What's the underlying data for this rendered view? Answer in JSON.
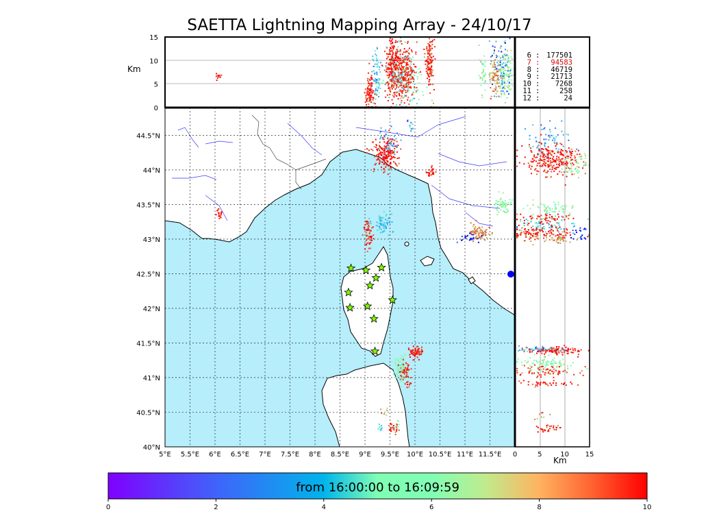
{
  "chart_data": {
    "type": "scatter",
    "title": "SAETTA Lightning Mapping Array - 24/10/17",
    "map_panel": {
      "x_ticks": [
        "5°E",
        "5.5°E",
        "6°E",
        "6.5°E",
        "7°E",
        "7.5°E",
        "8°E",
        "8.5°E",
        "9°E",
        "9.5°E",
        "10°E",
        "10.5°E",
        "11°E",
        "11.5°E"
      ],
      "y_ticks": [
        "40°N",
        "40.5°N",
        "41°N",
        "41.5°N",
        "42°N",
        "42.5°N",
        "43°N",
        "43.5°N",
        "44°N",
        "44.5°N"
      ],
      "lon_range": [
        5,
        12
      ],
      "lat_range": [
        40,
        44.9
      ],
      "grid": true,
      "stations": [
        [
          8.72,
          42.58
        ],
        [
          9.02,
          42.55
        ],
        [
          9.33,
          42.59
        ],
        [
          9.22,
          42.44
        ],
        [
          9.1,
          42.33
        ],
        [
          8.67,
          42.23
        ],
        [
          8.7,
          42.01
        ],
        [
          9.05,
          42.03
        ],
        [
          9.18,
          41.85
        ],
        [
          9.55,
          42.12
        ],
        [
          9.2,
          41.38
        ]
      ]
    },
    "altitude_panel_top": {
      "ylabel": "Km",
      "y_ticks": [
        "0",
        "5",
        "10",
        "15"
      ],
      "ylim": [
        0,
        15
      ]
    },
    "altitude_panel_right": {
      "xlabel": "Km",
      "x_ticks": [
        "0",
        "5",
        "10",
        "15"
      ],
      "xlim": [
        0,
        15
      ]
    },
    "station_counts": [
      {
        "stations": "6",
        "count": "177501"
      },
      {
        "stations": "7",
        "count": "94583"
      },
      {
        "stations": "8",
        "count": "46719"
      },
      {
        "stations": "9",
        "count": "21713"
      },
      {
        "stations": "10",
        "count": "7268"
      },
      {
        "stations": "11",
        "count": "258"
      },
      {
        "stations": "12",
        "count": "24"
      }
    ],
    "colorbar": {
      "label": "from 16:00:00 to 16:09:59",
      "ticks": [
        "0",
        "2",
        "4",
        "6",
        "8",
        "10"
      ],
      "range": [
        0,
        10
      ],
      "colormap": "rainbow"
    },
    "clusters": [
      {
        "lon": 9.4,
        "lat": 44.25,
        "n": 190,
        "sx": 0.12,
        "sy": 0.12,
        "c": 9.8
      },
      {
        "lon": 9.45,
        "lat": 44.4,
        "n": 40,
        "sx": 0.12,
        "sy": 0.1,
        "c": 2.2
      },
      {
        "lon": 10.3,
        "lat": 43.97,
        "n": 25,
        "sx": 0.05,
        "sy": 0.04,
        "c": 9.7
      },
      {
        "lon": 9.9,
        "lat": 44.68,
        "n": 10,
        "sx": 0.05,
        "sy": 0.05,
        "c": 2.0
      },
      {
        "lon": 9.35,
        "lat": 43.25,
        "n": 70,
        "sx": 0.08,
        "sy": 0.08,
        "c": 2.8
      },
      {
        "lon": 9.05,
        "lat": 43.08,
        "n": 60,
        "sx": 0.05,
        "sy": 0.1,
        "c": 9.6
      },
      {
        "lon": 11.75,
        "lat": 43.5,
        "n": 60,
        "sx": 0.1,
        "sy": 0.06,
        "c": 5.5
      },
      {
        "lon": 11.25,
        "lat": 43.1,
        "n": 80,
        "sx": 0.12,
        "sy": 0.06,
        "c": 8.2
      },
      {
        "lon": 11.1,
        "lat": 43.02,
        "n": 25,
        "sx": 0.1,
        "sy": 0.05,
        "c": 0.5
      },
      {
        "lon": 6.08,
        "lat": 43.38,
        "n": 15,
        "sx": 0.04,
        "sy": 0.04,
        "c": 9.8
      },
      {
        "lon": 10.0,
        "lat": 41.38,
        "n": 70,
        "sx": 0.08,
        "sy": 0.04,
        "c": 9.8
      },
      {
        "lon": 9.7,
        "lat": 41.15,
        "n": 90,
        "sx": 0.08,
        "sy": 0.1,
        "c": 5.0
      },
      {
        "lon": 9.8,
        "lat": 41.1,
        "n": 45,
        "sx": 0.05,
        "sy": 0.07,
        "c": 9.4
      },
      {
        "lon": 9.85,
        "lat": 40.9,
        "n": 8,
        "sx": 0.03,
        "sy": 0.03,
        "c": 9.7
      },
      {
        "lon": 9.55,
        "lat": 40.28,
        "n": 25,
        "sx": 0.05,
        "sy": 0.04,
        "c": 9.3
      },
      {
        "lon": 9.3,
        "lat": 40.28,
        "n": 10,
        "sx": 0.04,
        "sy": 0.03,
        "c": 3.0
      },
      {
        "lon": 9.4,
        "lat": 40.5,
        "n": 6,
        "sx": 0.04,
        "sy": 0.04,
        "c": 8.0
      },
      {
        "lon": 9.65,
        "lat": 40.35,
        "n": 6,
        "sx": 0.04,
        "sy": 0.04,
        "c": 5.0
      }
    ],
    "top_columns": [
      {
        "lon": 9.08,
        "alt": 3.5,
        "n": 100,
        "sx": 0.05,
        "sy": 1.8,
        "c": 9.8
      },
      {
        "lon": 9.22,
        "alt": 6.5,
        "n": 70,
        "sx": 0.04,
        "sy": 2.8,
        "c": 3.0
      },
      {
        "lon": 9.55,
        "alt": 8.5,
        "n": 260,
        "sx": 0.07,
        "sy": 3.2,
        "c": 9.8
      },
      {
        "lon": 9.78,
        "alt": 7.5,
        "n": 260,
        "sx": 0.11,
        "sy": 2.7,
        "c": 9.7
      },
      {
        "lon": 9.7,
        "alt": 7.5,
        "n": 90,
        "sx": 0.15,
        "sy": 3.5,
        "c": 3.5
      },
      {
        "lon": 10.28,
        "alt": 10.0,
        "n": 110,
        "sx": 0.04,
        "sy": 2.5,
        "c": 9.8
      },
      {
        "lon": 6.06,
        "alt": 6.6,
        "n": 12,
        "sx": 0.02,
        "sy": 0.5,
        "c": 9.8
      },
      {
        "lon": 11.6,
        "alt": 7.0,
        "n": 90,
        "sx": 0.07,
        "sy": 2.2,
        "c": 8.0
      },
      {
        "lon": 11.8,
        "alt": 7.5,
        "n": 110,
        "sx": 0.07,
        "sy": 2.6,
        "c": 6.0
      },
      {
        "lon": 11.7,
        "alt": 9.0,
        "n": 70,
        "sx": 0.1,
        "sy": 3.0,
        "c": 1.5
      },
      {
        "lon": 11.35,
        "alt": 6.5,
        "n": 35,
        "sx": 0.04,
        "sy": 2.6,
        "c": 5.5
      },
      {
        "lon": 10.0,
        "alt": 5.5,
        "n": 30,
        "sx": 0.1,
        "sy": 2.6,
        "c": 5.5
      },
      {
        "lon": 10.3,
        "alt": 6.0,
        "n": 20,
        "sx": 0.04,
        "sy": 2.5,
        "c": 8.5
      }
    ],
    "right_rows": [
      {
        "lat": 44.15,
        "alt": 7.5,
        "n": 260,
        "sx": 2.8,
        "sy": 0.12,
        "c": 9.8
      },
      {
        "lat": 44.45,
        "alt": 6.5,
        "n": 60,
        "sx": 2.2,
        "sy": 0.12,
        "c": 2.2
      },
      {
        "lat": 44.05,
        "alt": 12.0,
        "n": 50,
        "sx": 1.5,
        "sy": 0.08,
        "c": 5.5
      },
      {
        "lat": 43.45,
        "alt": 7.5,
        "n": 60,
        "sx": 2.5,
        "sy": 0.05,
        "c": 5.5
      },
      {
        "lat": 43.3,
        "alt": 6.0,
        "n": 60,
        "sx": 3.0,
        "sy": 0.04,
        "c": 9.8
      },
      {
        "lat": 43.2,
        "alt": 6.5,
        "n": 70,
        "sx": 3.2,
        "sy": 0.06,
        "c": 3.0
      },
      {
        "lat": 43.1,
        "alt": 5.0,
        "n": 120,
        "sx": 3.5,
        "sy": 0.05,
        "c": 9.6
      },
      {
        "lat": 43.0,
        "alt": 7.0,
        "n": 50,
        "sx": 3.0,
        "sy": 0.04,
        "c": 8.0
      },
      {
        "lat": 43.08,
        "alt": 12.5,
        "n": 25,
        "sx": 1.0,
        "sy": 0.06,
        "c": 0.5
      },
      {
        "lat": 41.4,
        "alt": 7.5,
        "n": 110,
        "sx": 3.0,
        "sy": 0.03,
        "c": 9.8
      },
      {
        "lat": 41.42,
        "alt": 4.5,
        "n": 40,
        "sx": 2.5,
        "sy": 0.02,
        "c": 2.5
      },
      {
        "lat": 41.2,
        "alt": 6.0,
        "n": 80,
        "sx": 3.0,
        "sy": 0.05,
        "c": 5.5
      },
      {
        "lat": 41.1,
        "alt": 6.5,
        "n": 70,
        "sx": 3.0,
        "sy": 0.04,
        "c": 9.5
      },
      {
        "lat": 40.92,
        "alt": 6.5,
        "n": 40,
        "sx": 2.8,
        "sy": 0.02,
        "c": 9.6
      },
      {
        "lat": 40.28,
        "alt": 6.5,
        "n": 30,
        "sx": 1.5,
        "sy": 0.03,
        "c": 9.5
      },
      {
        "lat": 40.5,
        "alt": 5.0,
        "n": 8,
        "sx": 1.2,
        "sy": 0.05,
        "c": 8.0
      }
    ]
  }
}
